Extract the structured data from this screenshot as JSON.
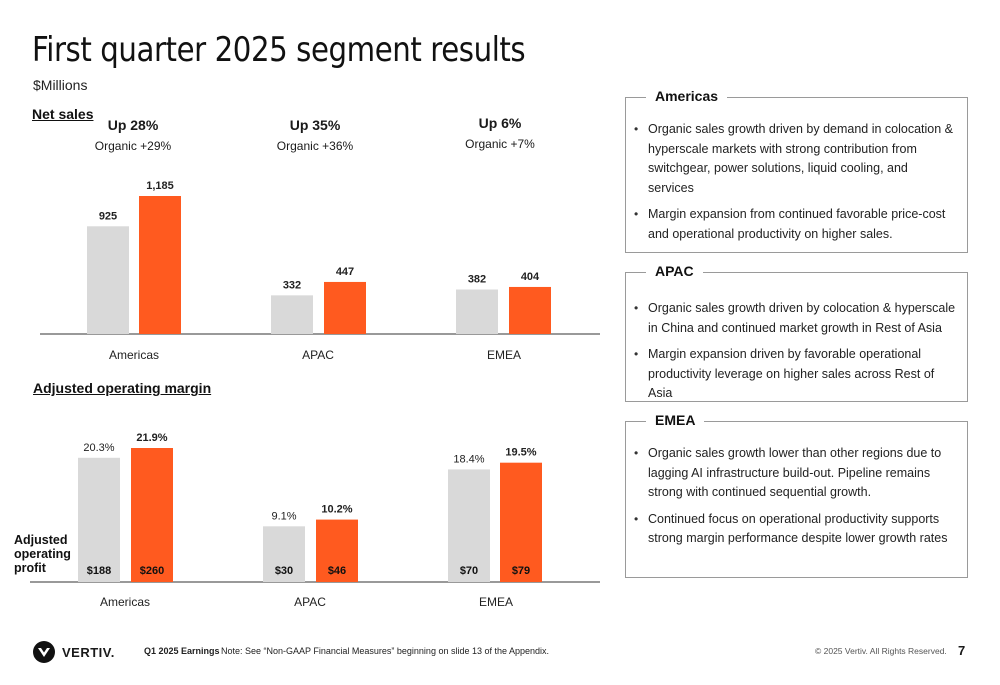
{
  "title": "First quarter 2025 segment results",
  "subtitle": "$Millions",
  "net_sales_label": "Net sales",
  "adjusted_operating_margin_label": "Adjusted operating margin",
  "adjusted_operating_profit_label": "Adjusted operating profit",
  "colors": {
    "prior": "#d9d9d9",
    "current": "#ff5a1f"
  },
  "growth": [
    {
      "up": "Up 28%",
      "organic": "Organic +29%"
    },
    {
      "up": "Up 35%",
      "organic": "Organic +36%"
    },
    {
      "up": "Up 6%",
      "organic": "Organic +7%"
    }
  ],
  "chart_data": [
    {
      "type": "bar",
      "title": "Net sales",
      "categories": [
        "Americas",
        "APAC",
        "EMEA"
      ],
      "series": [
        {
          "values": [
            925,
            332,
            382
          ],
          "labels": [
            "925",
            "332",
            "382"
          ],
          "color": "#d9d9d9"
        },
        {
          "values": [
            1185,
            447,
            404
          ],
          "labels": [
            "1,185",
            "447",
            "404"
          ],
          "color": "#ff5a1f"
        }
      ],
      "ylim": [
        0,
        1185
      ]
    },
    {
      "type": "bar",
      "title": "Adjusted operating margin",
      "categories": [
        "Americas",
        "APAC",
        "EMEA"
      ],
      "series": [
        {
          "values": [
            20.3,
            9.1,
            18.4
          ],
          "labels": [
            "20.3%",
            "9.1%",
            "18.4%"
          ],
          "profit_labels": [
            "$188",
            "$30",
            "$70"
          ],
          "color": "#d9d9d9"
        },
        {
          "values": [
            21.9,
            10.2,
            19.5
          ],
          "labels": [
            "21.9%",
            "10.2%",
            "19.5%"
          ],
          "profit_labels": [
            "$260",
            "$46",
            "$79"
          ],
          "color": "#ff5a1f"
        }
      ],
      "ylim": [
        0,
        21.9
      ]
    }
  ],
  "boxes": {
    "americas": {
      "title": "Americas",
      "bullets": [
        "Organic sales growth driven by demand in colocation & hyperscale markets with strong contribution from switchgear, power solutions, liquid cooling, and services",
        "Margin expansion from continued favorable price-cost and  operational productivity on higher sales."
      ]
    },
    "apac": {
      "title": "APAC",
      "bullets": [
        "Organic sales growth driven by colocation & hyperscale in China and continued market growth in Rest of Asia",
        "Margin expansion driven by favorable operational productivity leverage on higher sales across Rest of Asia"
      ]
    },
    "emea": {
      "title": "EMEA",
      "bullets": [
        "Organic sales growth lower than other regions due to lagging AI infrastructure build-out.  Pipeline remains strong with continued sequential growth.",
        "Continued focus on operational productivity supports strong margin performance despite lower growth rates"
      ]
    }
  },
  "footer": {
    "logo_text": "VERTIV.",
    "event": "Q1 2025 Earnings",
    "note": "Note: See “Non-GAAP Financial Measures” beginning on slide 13 of the Appendix.",
    "copyright": "© 2025 Vertiv. All Rights Reserved.",
    "page": "7"
  }
}
